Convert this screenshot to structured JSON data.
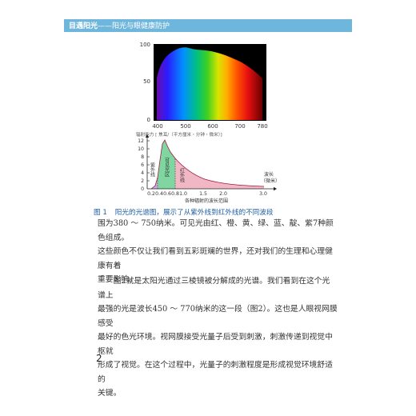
{
  "header": {
    "book_title": "目遇阳光",
    "subtitle": "——阳光与眼健康防护"
  },
  "figure1": {
    "spectrum_ticks": [
      "400",
      "500",
      "600",
      "700",
      "780"
    ],
    "spectrum_yticks": [
      "100",
      "50",
      "0"
    ],
    "ylabel": "辐射能力 [ 焦耳/（平方厘米・分钟・微米）]",
    "yticks": [
      "12",
      "10",
      "8",
      "6",
      "4",
      "2",
      "0"
    ],
    "xticks": [
      "0.2",
      "0.4",
      "0.6",
      "0.8",
      "1.0",
      "1.5",
      "2.0",
      "3.0"
    ],
    "xlabel": "各种辐射的波长范围",
    "axis_unit": "波长",
    "axis_unit2": "（微米）",
    "region_uv": "紫外线",
    "region_visible": "可见光区",
    "region_ir": "红外线",
    "caption_number": "图 1",
    "caption_text": "阳光的光谱图，展示了从紫外线到红外线的不同波段"
  },
  "body": {
    "p1_line1": "围为380 ～ 750纳米。可见光由红、橙、黄、绿、蓝、靛、紫7种颜色组成。",
    "p1_line2": "这些颜色不仅让我们看到五彩斑斓的世界，还对我们的生理和心理健康有着",
    "p1_line3": "重要影响。",
    "p2_line1": "图2就是太阳光通过三棱镜被分解成的光谱。我们看到在这个光谱上",
    "p2_line2": "最强的光是波长450 ～ 770纳米的这一段（图2）。这也是人眼视网膜感受",
    "p2_line3": "最好的色光环境。视网膜接受光量子后受到刺激，刺激传递到视觉中枢就",
    "p2_line4": "形成了视觉。在这个过程中，光量子的刺激程度是形成视觉环境舒适的",
    "p2_line5": "关键。"
  },
  "page_number": "2"
}
